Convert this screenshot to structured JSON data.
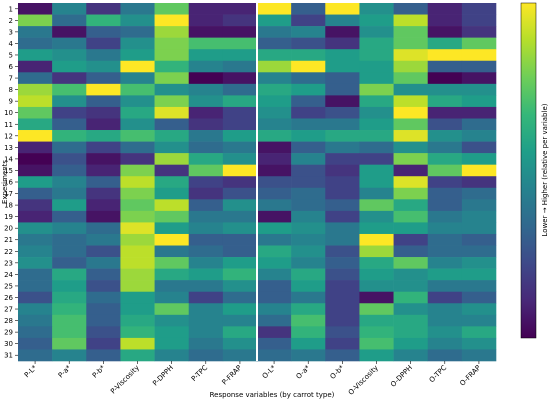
{
  "chart_data": {
    "type": "heatmap",
    "xlabel": "Response variables (by carrot type)",
    "ylabel": "Experiments",
    "colorbar_label": "Lower → Higher (relative per variable)",
    "categories": [
      "P-L*",
      "P-a*",
      "P-b*",
      "P-Viscosity",
      "P-DPPH",
      "P-TPC",
      "P-FRAP",
      "O-L*",
      "O-a*",
      "O-b*",
      "O-Viscosity",
      "O-DPPH",
      "O-TPC",
      "O-FRAP"
    ],
    "rows": [
      1,
      2,
      3,
      4,
      5,
      6,
      7,
      8,
      9,
      10,
      11,
      12,
      13,
      14,
      15,
      16,
      17,
      18,
      19,
      20,
      21,
      22,
      23,
      24,
      25,
      26,
      27,
      28,
      29,
      30,
      31
    ],
    "zlim": [
      0,
      1
    ],
    "colors": [
      "#440154",
      "#482878",
      "#3e4989",
      "#31688e",
      "#26828e",
      "#1f9e89",
      "#35b779",
      "#6ece58",
      "#b5de2b",
      "#fde725"
    ],
    "values": [
      [
        0.05,
        0.45,
        0.15,
        0.4,
        0.75,
        0.1,
        0.1,
        1.0,
        0.3,
        1.0,
        0.5,
        0.3,
        0.1,
        0.2
      ],
      [
        0.8,
        0.35,
        0.65,
        0.5,
        1.0,
        0.1,
        0.15,
        0.55,
        0.2,
        0.45,
        0.55,
        0.9,
        0.1,
        0.2
      ],
      [
        0.4,
        0.05,
        0.3,
        0.35,
        0.85,
        0.05,
        0.05,
        0.4,
        0.45,
        0.05,
        0.5,
        0.75,
        0.05,
        0.15
      ],
      [
        0.35,
        0.4,
        0.2,
        0.5,
        0.8,
        0.7,
        0.7,
        0.3,
        0.25,
        0.15,
        0.6,
        0.75,
        0.6,
        0.75
      ],
      [
        0.55,
        0.5,
        0.4,
        0.55,
        0.8,
        0.55,
        0.55,
        0.6,
        0.6,
        0.55,
        0.6,
        0.95,
        1.0,
        1.0
      ],
      [
        0.1,
        0.55,
        0.5,
        1.0,
        0.65,
        0.45,
        0.4,
        0.85,
        1.0,
        0.55,
        0.55,
        0.85,
        0.3,
        0.3
      ],
      [
        0.35,
        0.15,
        0.3,
        0.45,
        0.8,
        0.0,
        0.05,
        0.45,
        0.35,
        0.3,
        0.55,
        0.75,
        0.0,
        0.05
      ],
      [
        0.85,
        0.7,
        1.0,
        0.7,
        0.5,
        0.45,
        0.35,
        0.6,
        0.55,
        0.3,
        0.8,
        0.5,
        0.5,
        0.5
      ],
      [
        0.9,
        0.5,
        0.3,
        0.5,
        0.8,
        0.5,
        0.6,
        0.55,
        0.3,
        0.05,
        0.6,
        0.9,
        0.6,
        0.55
      ],
      [
        0.75,
        0.2,
        0.15,
        0.6,
        0.95,
        0.1,
        0.2,
        0.5,
        0.2,
        0.25,
        0.5,
        1.0,
        0.1,
        0.1
      ],
      [
        0.6,
        0.3,
        0.1,
        0.5,
        0.3,
        0.15,
        0.2,
        0.45,
        0.4,
        0.4,
        0.55,
        0.75,
        0.25,
        0.35
      ],
      [
        1.0,
        0.65,
        0.6,
        0.7,
        0.6,
        0.4,
        0.55,
        0.6,
        0.55,
        0.6,
        0.6,
        0.95,
        0.5,
        0.45
      ],
      [
        0.1,
        0.35,
        0.2,
        0.35,
        0.5,
        0.35,
        0.4,
        0.05,
        0.3,
        0.4,
        0.35,
        0.5,
        0.4,
        0.25
      ],
      [
        0.0,
        0.25,
        0.05,
        0.15,
        0.85,
        0.6,
        0.5,
        0.1,
        0.45,
        0.2,
        0.2,
        0.8,
        0.6,
        0.55
      ],
      [
        0.05,
        0.3,
        0.1,
        0.8,
        0.15,
        0.75,
        1.0,
        0.05,
        0.25,
        0.15,
        0.55,
        0.1,
        0.75,
        1.0
      ],
      [
        0.55,
        0.45,
        0.3,
        0.9,
        0.6,
        0.2,
        0.15,
        0.25,
        0.25,
        0.2,
        0.55,
        0.95,
        0.2,
        0.15
      ],
      [
        0.3,
        0.4,
        0.15,
        0.8,
        0.55,
        0.15,
        0.25,
        0.3,
        0.35,
        0.2,
        0.45,
        0.8,
        0.3,
        0.35
      ],
      [
        0.15,
        0.55,
        0.1,
        0.75,
        0.9,
        0.3,
        0.5,
        0.4,
        0.35,
        0.3,
        0.75,
        0.6,
        0.3,
        0.4
      ],
      [
        0.1,
        0.3,
        0.05,
        0.8,
        0.75,
        0.4,
        0.4,
        0.05,
        0.45,
        0.2,
        0.5,
        0.7,
        0.4,
        0.45
      ],
      [
        0.5,
        0.45,
        0.35,
        0.95,
        0.55,
        0.45,
        0.5,
        0.55,
        0.5,
        0.4,
        0.55,
        0.55,
        0.45,
        0.45
      ],
      [
        0.4,
        0.35,
        0.4,
        0.85,
        1.0,
        0.3,
        0.3,
        0.4,
        0.45,
        0.4,
        1.0,
        0.2,
        0.35,
        0.3
      ],
      [
        0.45,
        0.35,
        0.25,
        0.9,
        0.4,
        0.35,
        0.3,
        0.6,
        0.5,
        0.25,
        0.85,
        0.3,
        0.35,
        0.35
      ],
      [
        0.5,
        0.3,
        0.4,
        0.9,
        0.75,
        0.45,
        0.55,
        0.55,
        0.45,
        0.3,
        0.6,
        0.75,
        0.45,
        0.5
      ],
      [
        0.35,
        0.6,
        0.3,
        0.85,
        0.6,
        0.55,
        0.65,
        0.45,
        0.6,
        0.25,
        0.55,
        0.5,
        0.55,
        0.55
      ],
      [
        0.35,
        0.55,
        0.25,
        0.85,
        0.4,
        0.4,
        0.5,
        0.3,
        0.55,
        0.2,
        0.5,
        0.5,
        0.4,
        0.4
      ],
      [
        0.25,
        0.6,
        0.35,
        0.55,
        0.45,
        0.2,
        0.35,
        0.3,
        0.4,
        0.2,
        0.05,
        0.65,
        0.2,
        0.3
      ],
      [
        0.45,
        0.65,
        0.3,
        0.55,
        0.75,
        0.45,
        0.55,
        0.45,
        0.6,
        0.2,
        0.75,
        0.5,
        0.45,
        0.5
      ],
      [
        0.4,
        0.7,
        0.3,
        0.6,
        0.5,
        0.45,
        0.45,
        0.35,
        0.7,
        0.2,
        0.6,
        0.6,
        0.45,
        0.45
      ],
      [
        0.35,
        0.7,
        0.25,
        0.65,
        0.55,
        0.45,
        0.6,
        0.15,
        0.65,
        0.25,
        0.65,
        0.6,
        0.5,
        0.6
      ],
      [
        0.3,
        0.75,
        0.2,
        0.9,
        0.55,
        0.4,
        0.5,
        0.3,
        0.55,
        0.2,
        0.7,
        0.55,
        0.45,
        0.5
      ],
      [
        0.35,
        0.45,
        0.3,
        0.6,
        0.45,
        0.35,
        0.4,
        0.35,
        0.4,
        0.3,
        0.55,
        0.45,
        0.35,
        0.4
      ]
    ]
  }
}
